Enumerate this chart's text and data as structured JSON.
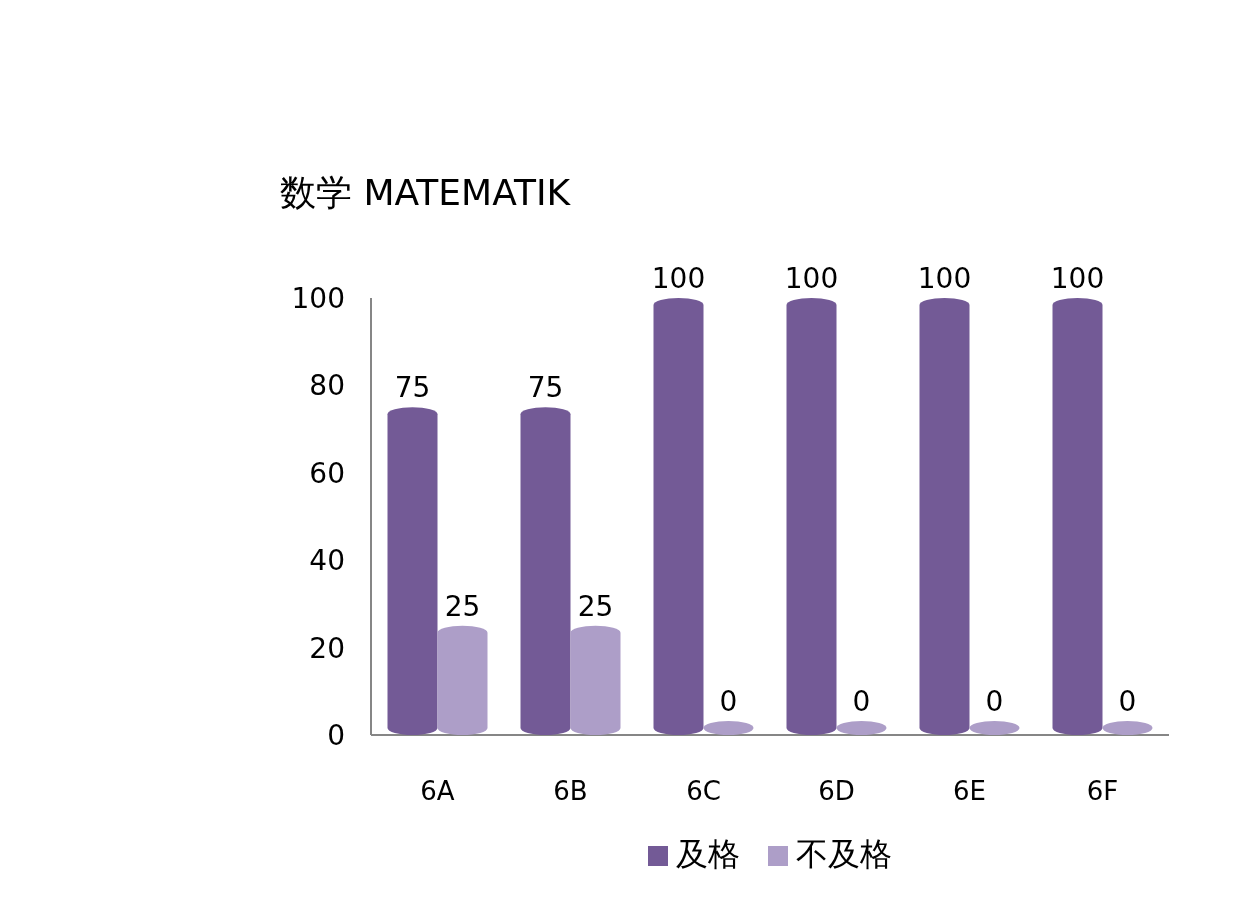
{
  "chart_data": {
    "type": "bar",
    "title": "数学 MATEMATIK",
    "categories": [
      "6A",
      "6B",
      "6C",
      "6D",
      "6E",
      "6F"
    ],
    "series": [
      {
        "name": "及格",
        "color": "#735a96",
        "values": [
          75,
          75,
          100,
          100,
          100,
          100
        ]
      },
      {
        "name": "不及格",
        "color": "#ad9ec8",
        "values": [
          25,
          25,
          0,
          0,
          0,
          0
        ]
      }
    ],
    "ylim": [
      0,
      100
    ],
    "yticks": [
      0,
      20,
      40,
      60,
      80,
      100
    ],
    "data_labels": true,
    "legend": "bottom"
  }
}
